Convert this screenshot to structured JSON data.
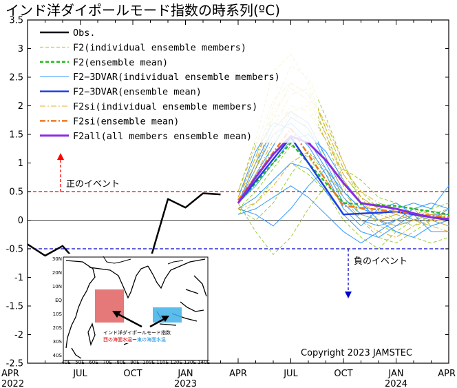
{
  "chart_data": {
    "type": "line",
    "title": "インド洋ダイポールモード指数の時系列(ºC)",
    "ylim": [
      -2.5,
      3.5
    ],
    "y_ticks": [
      3.5,
      3,
      2.5,
      2,
      1.5,
      1,
      0.5,
      0,
      -0.5,
      -1,
      -1.5,
      -2,
      -2.5
    ],
    "y_tick_labels": [
      "3.5",
      "3",
      "2.5",
      "2",
      "1.5",
      "1",
      "0.5",
      "0",
      "-0.5",
      "-1",
      "-1.5",
      "-2",
      "-2.5"
    ],
    "x_ticks": [
      {
        "month": 0,
        "label": "APR",
        "sub": "2022"
      },
      {
        "month": 3,
        "label": "JUL",
        "sub": ""
      },
      {
        "month": 6,
        "label": "OCT",
        "sub": ""
      },
      {
        "month": 9,
        "label": "JAN",
        "sub": "2023"
      },
      {
        "month": 12,
        "label": "APR",
        "sub": ""
      },
      {
        "month": 15,
        "label": "JUL",
        "sub": ""
      },
      {
        "month": 18,
        "label": "OCT",
        "sub": ""
      },
      {
        "month": 21,
        "label": "JAN",
        "sub": "2024"
      },
      {
        "month": 24,
        "label": "APR",
        "sub": ""
      }
    ],
    "legend": [
      {
        "label": "Obs.",
        "color": "#000000",
        "style": "solid",
        "width": 2.5
      },
      {
        "label": "F2(individual ensemble members)",
        "color": "#9acd32",
        "style": "dashed",
        "width": 1
      },
      {
        "label": "F2(ensemble mean)",
        "color": "#22bb22",
        "style": "dashed",
        "width": 2.5
      },
      {
        "label": "F2−3DVAR(individual ensemble members)",
        "color": "#3399ff",
        "style": "solid",
        "width": 1
      },
      {
        "label": "F2−3DVAR(ensemble mean)",
        "color": "#1f3fe0",
        "style": "solid",
        "width": 2.5
      },
      {
        "label": "F2si(individual ensemble members)",
        "color": "#e0b030",
        "style": "dashdot",
        "width": 1
      },
      {
        "label": "F2si(ensemble mean)",
        "color": "#ee7722",
        "style": "dashdot",
        "width": 2.5
      },
      {
        "label": "F2all(all members ensemble mean)",
        "color": "#8a2be2",
        "style": "solid",
        "width": 3
      }
    ],
    "series": [
      {
        "name": "Obs.",
        "color": "#000000",
        "style": "solid",
        "width": 2.5,
        "x": [
          0,
          1,
          2,
          3,
          4,
          5,
          6,
          7,
          8,
          9,
          10,
          11
        ],
        "y": [
          -0.42,
          -0.62,
          -0.45,
          -0.8,
          -0.83,
          -0.75,
          -0.77,
          -0.68,
          0.37,
          0.22,
          0.47,
          0.45
        ]
      },
      {
        "name": "F2(ensemble mean)",
        "color": "#22bb22",
        "style": "dashed",
        "width": 2.5,
        "x": [
          12,
          15,
          18,
          21,
          24
        ],
        "y": [
          0.3,
          1.35,
          0.3,
          0.25,
          0.1
        ]
      },
      {
        "name": "F2−3DVAR(ensemble mean)",
        "color": "#1f3fe0",
        "style": "solid",
        "width": 2.5,
        "x": [
          12,
          15,
          18,
          21,
          24
        ],
        "y": [
          0.3,
          1.45,
          0.1,
          0.15,
          0.0
        ]
      },
      {
        "name": "F2si(ensemble mean)",
        "color": "#ee7722",
        "style": "dashdot",
        "width": 2.5,
        "x": [
          12,
          15,
          18,
          21,
          24
        ],
        "y": [
          0.35,
          1.6,
          0.25,
          0.15,
          0.05
        ]
      },
      {
        "name": "F2all(all members ensemble mean)",
        "color": "#8a2be2",
        "style": "solid",
        "width": 3,
        "x": [
          12,
          13,
          14,
          15,
          16,
          17,
          18,
          19,
          20,
          21,
          22,
          23,
          24
        ],
        "y": [
          0.3,
          0.75,
          1.15,
          1.47,
          1.35,
          1.05,
          0.65,
          0.3,
          0.25,
          0.2,
          0.12,
          0.05,
          0.02
        ]
      }
    ],
    "ensembles": {
      "F2": {
        "color": "#9acd32",
        "style": "dashed",
        "width": 1,
        "x": [
          12,
          13,
          14,
          15,
          16,
          17,
          18,
          19,
          20,
          21,
          22,
          23,
          24
        ],
        "members": [
          [
            0.3,
            0.9,
            1.8,
            2.4,
            2.2,
            1.5,
            0.8,
            0.4,
            0.2,
            0.1,
            0.0,
            -0.1,
            0.0
          ],
          [
            0.2,
            0.5,
            0.9,
            1.3,
            1.1,
            0.7,
            0.3,
            0.2,
            0.3,
            0.2,
            0.1,
            0.0,
            0.1
          ],
          [
            0.4,
            1.1,
            2.0,
            2.7,
            2.5,
            1.8,
            1.0,
            0.3,
            -0.1,
            -0.2,
            -0.3,
            -0.4,
            -0.3
          ],
          [
            0.1,
            0.3,
            0.7,
            1.0,
            0.8,
            0.5,
            0.0,
            -0.3,
            -0.5,
            -0.2,
            0.0,
            0.2,
            0.3
          ],
          [
            0.3,
            -0.2,
            -0.6,
            -0.3,
            0.2,
            0.6,
            0.9,
            0.7,
            0.4,
            0.3,
            0.1,
            0.2,
            0.0
          ],
          [
            0.5,
            1.4,
            2.6,
            2.9,
            2.4,
            1.6,
            0.9,
            0.5,
            0.2,
            0.0,
            -0.1,
            0.1,
            0.2
          ],
          [
            0.2,
            0.0,
            0.3,
            0.8,
            1.2,
            0.8,
            0.4,
            0.1,
            0.0,
            0.1,
            0.2,
            -0.1,
            0.0
          ],
          [
            0.3,
            0.7,
            1.3,
            1.9,
            2.0,
            1.4,
            0.6,
            0.0,
            -0.3,
            -0.4,
            -0.2,
            0.0,
            0.1
          ]
        ]
      },
      "F2-3DVAR": {
        "color": "#3399ff",
        "style": "solid",
        "width": 1,
        "x": [
          12,
          13,
          14,
          15,
          16,
          17,
          18,
          19,
          20,
          21,
          22,
          23,
          24
        ],
        "members": [
          [
            0.3,
            0.8,
            1.3,
            1.8,
            1.6,
            1.0,
            0.4,
            0.1,
            0.0,
            -0.1,
            0.0,
            0.1,
            0.0
          ],
          [
            0.2,
            0.4,
            0.7,
            1.0,
            0.9,
            0.5,
            0.1,
            -0.2,
            -0.3,
            -0.1,
            0.1,
            0.0,
            -0.1
          ],
          [
            0.3,
            1.0,
            1.6,
            1.9,
            1.7,
            1.1,
            0.5,
            0.2,
            0.1,
            0.2,
            0.3,
            0.2,
            0.6
          ],
          [
            0.1,
            0.2,
            0.4,
            0.6,
            0.4,
            0.1,
            -0.2,
            -0.4,
            -0.2,
            0.0,
            0.1,
            -0.2,
            -0.2
          ],
          [
            0.4,
            1.2,
            1.7,
            1.6,
            1.3,
            0.8,
            0.2,
            -0.1,
            0.2,
            0.3,
            0.1,
            0.0,
            0.2
          ],
          [
            0.3,
            0.6,
            1.0,
            1.4,
            1.5,
            1.2,
            0.7,
            0.3,
            0.0,
            -0.2,
            -0.3,
            -0.1,
            0.0
          ],
          [
            0.2,
            0.1,
            -0.1,
            0.2,
            0.6,
            0.9,
            0.5,
            0.2,
            0.1,
            0.2,
            0.0,
            0.1,
            0.1
          ],
          [
            0.3,
            0.9,
            1.5,
            1.7,
            1.4,
            0.9,
            0.3,
            0.0,
            -0.1,
            0.0,
            0.2,
            0.3,
            0.2
          ]
        ]
      },
      "F2si": {
        "color": "#e0b030",
        "style": "dashdot",
        "width": 1,
        "x": [
          12,
          13,
          14,
          15,
          16,
          17,
          18,
          19,
          20,
          21,
          22,
          23,
          24
        ],
        "members": [
          [
            0.4,
            1.0,
            1.9,
            2.3,
            2.1,
            1.5,
            0.7,
            0.3,
            0.1,
            0.0,
            0.1,
            0.0,
            0.0
          ],
          [
            0.3,
            0.8,
            1.4,
            2.0,
            1.9,
            1.4,
            0.8,
            0.4,
            0.2,
            0.1,
            0.0,
            -0.1,
            -0.2
          ],
          [
            0.5,
            1.3,
            2.1,
            2.4,
            2.2,
            1.7,
            1.0,
            0.4,
            0.0,
            -0.1,
            0.0,
            0.1,
            0.1
          ],
          [
            0.2,
            0.3,
            0.6,
            1.0,
            1.2,
            0.9,
            0.4,
            0.0,
            -0.2,
            -0.3,
            -0.1,
            0.0,
            0.1
          ],
          [
            0.3,
            0.9,
            1.6,
            2.2,
            2.3,
            1.6,
            0.9,
            0.5,
            0.3,
            0.2,
            0.1,
            0.0,
            -0.1
          ],
          [
            0.4,
            1.1,
            1.8,
            1.9,
            1.6,
            1.1,
            0.5,
            0.1,
            0.0,
            0.1,
            0.2,
            0.1,
            0.0
          ]
        ]
      }
    },
    "reference_lines": [
      {
        "y": 0.5,
        "color": "#ff0000",
        "style": "dashed"
      },
      {
        "y": -0.5,
        "color": "#0000cc",
        "style": "dashed"
      },
      {
        "y": 0,
        "color": "#000000",
        "style": "solid"
      }
    ],
    "annotations": {
      "positive_event": "正のイベント",
      "negative_event": "負のイベント",
      "copyright": "Copyright 2023 JAMSTEC"
    },
    "inset": {
      "caption_line1": "インド洋ダイポールモード指数",
      "caption_west": "西の海面水温",
      "caption_dash": "ー",
      "caption_east": "東の海面水温",
      "west_color": "#e06060",
      "east_color": "#40b0e8",
      "lat_labels": [
        "30N",
        "20N",
        "10N",
        "EQ",
        "10S",
        "20S",
        "30S",
        "40S"
      ],
      "lon_labels": [
        "40E",
        "50E",
        "60E",
        "70E",
        "80E",
        "90E",
        "100E",
        "110E",
        "120E",
        "130E",
        "140E"
      ]
    }
  }
}
